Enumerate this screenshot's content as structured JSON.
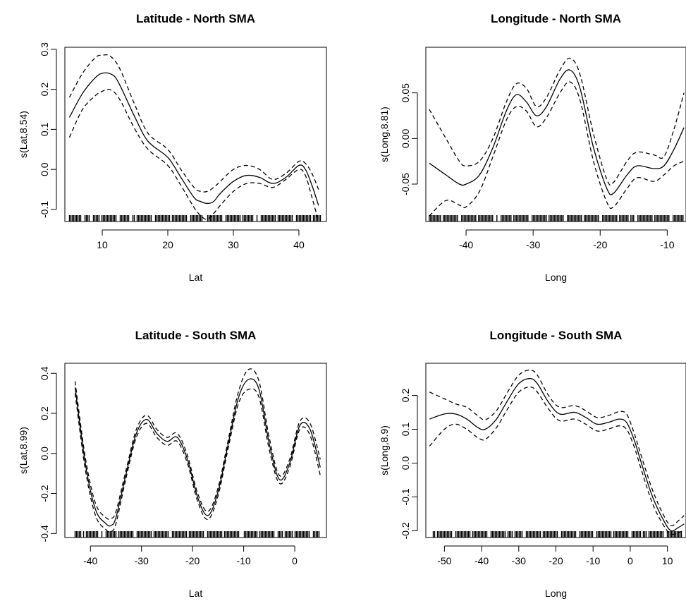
{
  "chart_data": [
    {
      "type": "line",
      "title": "Latitude - North SMA",
      "xlabel": "Lat",
      "ylabel": "s(Lat,8.54)",
      "xlim": [
        4.3,
        44.2
      ],
      "ylim": [
        -0.13,
        0.305
      ],
      "xticks": [
        10,
        20,
        30,
        40
      ],
      "yticks": [
        -0.1,
        0.0,
        0.1,
        0.2,
        0.3
      ],
      "xtick_labels": [
        "10",
        "20",
        "30",
        "40"
      ],
      "ytick_labels": [
        "-0.1",
        "0.0",
        "0.1",
        "0.2",
        "0.3"
      ],
      "series": [
        {
          "role": "fit",
          "style": "solid",
          "x": [
            5,
            7,
            9,
            10,
            11,
            12,
            13,
            15,
            17,
            20,
            22,
            24,
            25,
            26,
            27,
            28,
            30,
            32,
            34,
            36,
            38,
            40,
            41,
            42,
            43
          ],
          "y": [
            0.13,
            0.19,
            0.23,
            0.24,
            0.24,
            0.23,
            0.2,
            0.13,
            0.07,
            0.03,
            -0.02,
            -0.07,
            -0.08,
            -0.085,
            -0.08,
            -0.06,
            -0.03,
            -0.015,
            -0.02,
            -0.035,
            -0.02,
            0.01,
            0.0,
            -0.04,
            -0.09
          ]
        },
        {
          "role": "upper",
          "style": "dashed",
          "x": [
            5,
            7,
            9,
            10,
            11,
            12,
            13,
            15,
            17,
            20,
            22,
            24,
            25,
            26,
            27,
            28,
            30,
            32,
            34,
            36,
            38,
            40,
            41,
            42,
            43
          ],
          "y": [
            0.18,
            0.24,
            0.28,
            0.285,
            0.285,
            0.27,
            0.24,
            0.16,
            0.09,
            0.05,
            0.0,
            -0.045,
            -0.055,
            -0.055,
            -0.045,
            -0.03,
            0.0,
            0.01,
            0.0,
            -0.025,
            -0.01,
            0.02,
            0.015,
            -0.01,
            -0.05
          ]
        },
        {
          "role": "lower",
          "style": "dashed",
          "x": [
            5,
            7,
            9,
            10,
            11,
            12,
            13,
            15,
            17,
            20,
            22,
            24,
            25,
            26,
            27,
            28,
            30,
            32,
            34,
            36,
            38,
            40,
            41,
            42,
            43
          ],
          "y": [
            0.08,
            0.15,
            0.185,
            0.195,
            0.2,
            0.19,
            0.165,
            0.1,
            0.05,
            0.01,
            -0.04,
            -0.095,
            -0.115,
            -0.125,
            -0.11,
            -0.09,
            -0.055,
            -0.035,
            -0.035,
            -0.045,
            -0.025,
            0.0,
            -0.015,
            -0.07,
            -0.13
          ]
        }
      ],
      "rug": {
        "from": 5,
        "to": 43.5,
        "gaps": [
          [
            8.2,
            8.6
          ],
          [
            14.2,
            14.5
          ],
          [
            25.4,
            26.0
          ],
          [
            33.1,
            33.4
          ]
        ]
      }
    },
    {
      "type": "line",
      "title": "Longitude - North SMA",
      "xlabel": "Long",
      "ylabel": "s(Long,8.81)",
      "xlim": [
        -46,
        -7.2
      ],
      "ylim": [
        -0.091,
        0.1
      ],
      "xticks": [
        -40,
        -30,
        -20,
        -10
      ],
      "yticks": [
        -0.05,
        0.0,
        0.05
      ],
      "xtick_labels": [
        "-40",
        "-30",
        "-20",
        "-10"
      ],
      "ytick_labels": [
        "-0.05",
        "0.00",
        "0.05"
      ],
      "series": [
        {
          "role": "fit",
          "style": "solid",
          "x": [
            -45.5,
            -43,
            -41,
            -40,
            -38,
            -36,
            -34,
            -32.5,
            -31,
            -29.5,
            -28,
            -26,
            -24.5,
            -23,
            -21,
            -19,
            -18,
            -16,
            -14.5,
            -12,
            -10.5,
            -9,
            -7.5
          ],
          "y": [
            -0.027,
            -0.04,
            -0.05,
            -0.05,
            -0.04,
            -0.01,
            0.03,
            0.048,
            0.04,
            0.025,
            0.035,
            0.065,
            0.075,
            0.055,
            -0.01,
            -0.055,
            -0.06,
            -0.04,
            -0.03,
            -0.033,
            -0.03,
            -0.012,
            0.012
          ]
        },
        {
          "role": "upper",
          "style": "dashed",
          "x": [
            -45.5,
            -43,
            -41,
            -40,
            -38,
            -36,
            -34,
            -32.5,
            -31,
            -29.5,
            -28,
            -26,
            -24.5,
            -23,
            -21,
            -19,
            -18,
            -16,
            -14.5,
            -12,
            -10.5,
            -9,
            -7.5
          ],
          "y": [
            0.032,
            0.0,
            -0.025,
            -0.03,
            -0.025,
            0.0,
            0.04,
            0.06,
            0.055,
            0.035,
            0.045,
            0.075,
            0.088,
            0.07,
            0.005,
            -0.045,
            -0.048,
            -0.025,
            -0.015,
            -0.018,
            -0.02,
            0.01,
            0.05
          ]
        },
        {
          "role": "lower",
          "style": "dashed",
          "x": [
            -45.5,
            -43,
            -41,
            -40,
            -38,
            -36,
            -34,
            -32.5,
            -31,
            -29.5,
            -28,
            -26,
            -24.5,
            -23,
            -21,
            -19,
            -18,
            -16,
            -14.5,
            -12,
            -10.5,
            -9,
            -7.5
          ],
          "y": [
            -0.085,
            -0.068,
            -0.073,
            -0.075,
            -0.058,
            -0.02,
            0.02,
            0.035,
            0.03,
            0.013,
            0.023,
            0.05,
            0.062,
            0.042,
            -0.025,
            -0.07,
            -0.075,
            -0.055,
            -0.043,
            -0.047,
            -0.04,
            -0.03,
            -0.025
          ]
        }
      ],
      "rug": {
        "from": -45.5,
        "to": -7.5,
        "gaps": [
          [
            -43.8,
            -43.4
          ],
          [
            -35.2,
            -34.9
          ],
          [
            -15.8,
            -15.5
          ]
        ]
      }
    },
    {
      "type": "line",
      "title": "Latitude - South SMA",
      "xlabel": "Lat",
      "ylabel": "s(Lat,8.99)",
      "xlim": [
        -45,
        6.2
      ],
      "ylim": [
        -0.42,
        0.45
      ],
      "xticks": [
        -40,
        -30,
        -20,
        -10,
        0
      ],
      "yticks": [
        -0.4,
        -0.2,
        0.0,
        0.2,
        0.4
      ],
      "xtick_labels": [
        "-40",
        "-30",
        "-20",
        "-10",
        "0"
      ],
      "ytick_labels": [
        "-0.4",
        "-0.2",
        "0.0",
        "0.2",
        "0.4"
      ],
      "series": [
        {
          "role": "fit",
          "style": "solid",
          "x": [
            -43,
            -41,
            -39,
            -37,
            -36,
            -35,
            -33,
            -31,
            -29,
            -27,
            -25,
            -23,
            -21,
            -19,
            -17,
            -15,
            -13,
            -11,
            -9,
            -7,
            -5,
            -3,
            -1,
            1,
            3,
            5
          ],
          "y": [
            0.33,
            -0.05,
            -0.28,
            -0.35,
            -0.36,
            -0.32,
            -0.1,
            0.1,
            0.17,
            0.1,
            0.06,
            0.08,
            -0.03,
            -0.22,
            -0.31,
            -0.19,
            0.05,
            0.28,
            0.37,
            0.32,
            0.05,
            -0.13,
            -0.05,
            0.14,
            0.12,
            -0.07
          ]
        },
        {
          "role": "upper",
          "style": "dashed",
          "x": [
            -43,
            -41,
            -39,
            -37,
            -36,
            -35,
            -33,
            -31,
            -29,
            -27,
            -25,
            -23,
            -21,
            -19,
            -17,
            -15,
            -13,
            -11,
            -9,
            -7,
            -5,
            -3,
            -1,
            1,
            3,
            5
          ],
          "y": [
            0.36,
            -0.02,
            -0.25,
            -0.32,
            -0.325,
            -0.29,
            -0.08,
            0.12,
            0.19,
            0.12,
            0.08,
            0.1,
            -0.01,
            -0.2,
            -0.29,
            -0.17,
            0.07,
            0.31,
            0.42,
            0.36,
            0.08,
            -0.11,
            -0.03,
            0.16,
            0.15,
            -0.03
          ]
        },
        {
          "role": "lower",
          "style": "dashed",
          "x": [
            -43,
            -41,
            -39,
            -37,
            -36,
            -35,
            -33,
            -31,
            -29,
            -27,
            -25,
            -23,
            -21,
            -19,
            -17,
            -15,
            -13,
            -11,
            -9,
            -7,
            -5,
            -3,
            -1,
            1,
            3,
            5
          ],
          "y": [
            0.3,
            -0.08,
            -0.31,
            -0.38,
            -0.39,
            -0.35,
            -0.12,
            0.08,
            0.15,
            0.08,
            0.04,
            0.06,
            -0.05,
            -0.24,
            -0.33,
            -0.21,
            0.03,
            0.25,
            0.32,
            0.28,
            0.02,
            -0.15,
            -0.07,
            0.12,
            0.09,
            -0.11
          ]
        }
      ],
      "rug": {
        "from": -43,
        "to": 5,
        "gaps": [
          [
            -41.2,
            -40.8
          ],
          [
            -37.6,
            -37.2
          ],
          [
            -10.4,
            -10.1
          ],
          [
            -2.4,
            -2.1
          ]
        ]
      }
    },
    {
      "type": "line",
      "title": "Longitude - South SMA",
      "xlabel": "Long",
      "ylabel": "s(Long,8.9)",
      "xlim": [
        -55,
        15
      ],
      "ylim": [
        -0.22,
        0.295
      ],
      "xticks": [
        -50,
        -40,
        -30,
        -20,
        -10,
        0,
        10
      ],
      "yticks": [
        -0.2,
        -0.1,
        0.0,
        0.1,
        0.2
      ],
      "xtick_labels": [
        "-50",
        "-40",
        "-30",
        "-20",
        "-10",
        "0",
        "10"
      ],
      "ytick_labels": [
        "-0.2",
        "-0.1",
        "0.0",
        "0.1",
        "0.2"
      ],
      "series": [
        {
          "role": "fit",
          "style": "solid",
          "x": [
            -54,
            -50,
            -47,
            -44,
            -41,
            -39,
            -36,
            -33,
            -30,
            -27,
            -25,
            -22,
            -19,
            -15,
            -12,
            -9,
            -6,
            -3,
            -1,
            1,
            3,
            6,
            9,
            11,
            13,
            14.5
          ],
          "y": [
            0.13,
            0.145,
            0.145,
            0.13,
            0.105,
            0.1,
            0.13,
            0.185,
            0.235,
            0.25,
            0.235,
            0.18,
            0.145,
            0.15,
            0.135,
            0.115,
            0.12,
            0.13,
            0.12,
            0.07,
            0.0,
            -0.1,
            -0.17,
            -0.2,
            -0.19,
            -0.18
          ]
        },
        {
          "role": "upper",
          "style": "dashed",
          "x": [
            -54,
            -50,
            -47,
            -44,
            -41,
            -39,
            -36,
            -33,
            -30,
            -27,
            -25,
            -22,
            -19,
            -15,
            -12,
            -9,
            -6,
            -3,
            -1,
            1,
            3,
            6,
            9,
            11,
            13,
            14.5
          ],
          "y": [
            0.21,
            0.19,
            0.175,
            0.165,
            0.14,
            0.128,
            0.155,
            0.21,
            0.26,
            0.275,
            0.26,
            0.2,
            0.165,
            0.17,
            0.155,
            0.135,
            0.14,
            0.152,
            0.145,
            0.09,
            0.02,
            -0.08,
            -0.155,
            -0.185,
            -0.17,
            -0.155
          ]
        },
        {
          "role": "lower",
          "style": "dashed",
          "x": [
            -54,
            -50,
            -47,
            -44,
            -41,
            -39,
            -36,
            -33,
            -30,
            -27,
            -25,
            -22,
            -19,
            -15,
            -12,
            -9,
            -6,
            -3,
            -1,
            1,
            3,
            6,
            9,
            11,
            13,
            14.5
          ],
          "y": [
            0.05,
            0.1,
            0.115,
            0.1,
            0.075,
            0.07,
            0.105,
            0.16,
            0.21,
            0.225,
            0.21,
            0.16,
            0.125,
            0.13,
            0.115,
            0.095,
            0.1,
            0.11,
            0.1,
            0.05,
            -0.02,
            -0.12,
            -0.185,
            -0.21,
            -0.205,
            -0.2
          ]
        }
      ],
      "rug": {
        "from": -53,
        "to": 14,
        "gaps": [
          [
            -47.6,
            -47.3
          ],
          [
            -31.4,
            -31.1
          ],
          [
            -14.2,
            -13.9
          ],
          [
            3.1,
            3.4
          ]
        ]
      }
    }
  ]
}
